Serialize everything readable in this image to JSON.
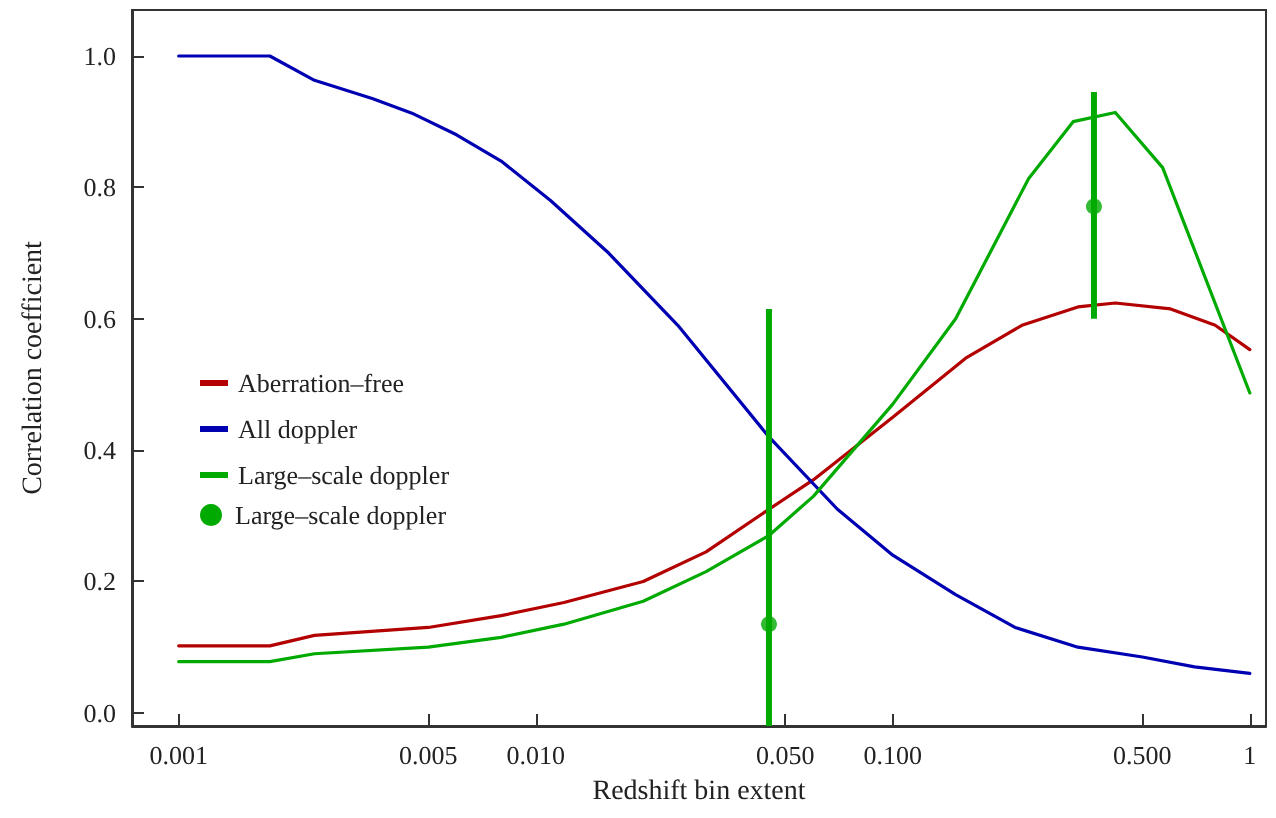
{
  "chart_data": {
    "type": "line",
    "xlabel": "Redshift bin extent",
    "ylabel": "Correlation coefficient",
    "log": "x",
    "grid": false,
    "legend": "left",
    "marker": "none",
    "line_style": "solid",
    "xlim": [
      0.00074,
      1.11
    ],
    "ylim": [
      -0.02,
      1.07
    ],
    "xticks": [
      0.001,
      {
        "value": 0.005,
        "label": "0.005"
      },
      {
        "value": 0.01,
        "label": "0.010"
      },
      {
        "value": 0.05,
        "label": "0.050"
      },
      {
        "value": 0.1,
        "label": "0.100"
      },
      {
        "value": 0.5,
        "label": "0.500"
      },
      1
    ],
    "yticks": [
      {
        "value": 0,
        "label": "0.0"
      },
      0.2,
      0.4,
      0.6,
      0.8,
      {
        "value": 1,
        "label": "1.0"
      }
    ],
    "series": [
      {
        "name": "Aberration–free",
        "color": "#b30000",
        "x": [
          0.001,
          0.0018,
          0.0024,
          0.005,
          0.008,
          0.012,
          0.02,
          0.03,
          0.045,
          0.06,
          0.1,
          0.16,
          0.23,
          0.33,
          0.42,
          0.6,
          0.8,
          1.0
        ],
        "values": [
          0.102,
          0.102,
          0.118,
          0.13,
          0.148,
          0.168,
          0.2,
          0.245,
          0.31,
          0.355,
          0.45,
          0.54,
          0.59,
          0.618,
          0.624,
          0.615,
          0.59,
          0.553
        ]
      },
      {
        "name": "All doppler",
        "color": "#0000b3",
        "x": [
          0.001,
          0.0018,
          0.0024,
          0.0035,
          0.0045,
          0.006,
          0.008,
          0.011,
          0.016,
          0.025,
          0.045,
          0.07,
          0.1,
          0.15,
          0.22,
          0.33,
          0.5,
          0.7,
          1.0
        ],
        "values": [
          1.0,
          1.0,
          0.963,
          0.935,
          0.913,
          0.88,
          0.84,
          0.78,
          0.7,
          0.59,
          0.42,
          0.31,
          0.24,
          0.18,
          0.13,
          0.1,
          0.085,
          0.07,
          0.06
        ]
      },
      {
        "name": "Large–scale doppler",
        "color": "#00aa00",
        "x": [
          0.001,
          0.0018,
          0.0024,
          0.005,
          0.008,
          0.012,
          0.02,
          0.03,
          0.045,
          0.06,
          0.1,
          0.15,
          0.24,
          0.32,
          0.42,
          0.57,
          1.0
        ],
        "values": [
          0.078,
          0.078,
          0.09,
          0.1,
          0.115,
          0.135,
          0.17,
          0.215,
          0.27,
          0.33,
          0.47,
          0.6,
          0.813,
          0.9,
          0.914,
          0.83,
          0.487
        ]
      },
      {
        "name": "Large–scale doppler",
        "type": "scatter",
        "marker": "circle",
        "color": "#00aa00",
        "x": [
          0.045,
          0.366
        ],
        "values": [
          0.135,
          0.771
        ],
        "errors": [
          [
            -0.02,
            0.615
          ],
          [
            0.6,
            0.945
          ]
        ]
      }
    ]
  }
}
